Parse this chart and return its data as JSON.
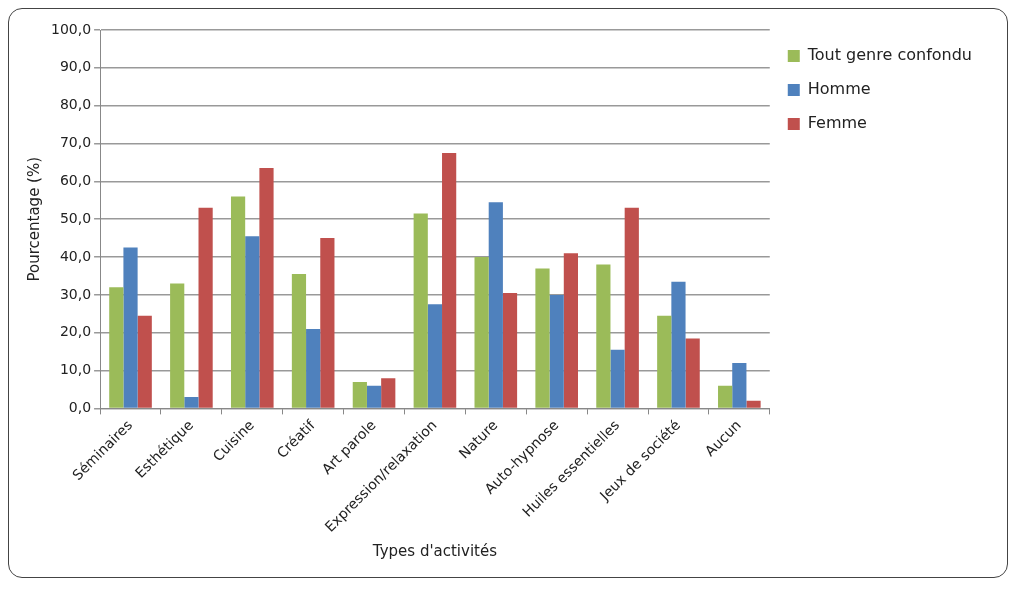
{
  "chart_data": {
    "type": "bar",
    "xlabel": "Types d'activités",
    "ylabel": "Pourcentage (%)",
    "categories": [
      "Séminaires",
      "Esthétique",
      "Cuisine",
      "Créatif",
      "Art parole",
      "Expression/relaxation",
      "Nature",
      "Auto-hypnose",
      "Huiles essentielles",
      "Jeux de société",
      "Aucun"
    ],
    "series": [
      {
        "name": "Tout genre confondu",
        "color": "#9bbb59",
        "values": [
          32,
          33,
          56,
          35.5,
          7,
          51.5,
          40,
          37,
          38,
          24.5,
          6
        ]
      },
      {
        "name": "Homme",
        "color": "#4f81bd",
        "values": [
          42.5,
          3,
          45.5,
          21,
          6,
          27.5,
          54.5,
          30,
          15.5,
          33.5,
          12
        ]
      },
      {
        "name": "Femme",
        "color": "#c0504d",
        "values": [
          24.5,
          53,
          63.5,
          45,
          8,
          67.5,
          30.5,
          41,
          53,
          18.5,
          2
        ]
      }
    ],
    "ylim": [
      0,
      100
    ],
    "yticks": [
      {
        "value": 0,
        "label": "0,0"
      },
      {
        "value": 10,
        "label": "10,0"
      },
      {
        "value": 20,
        "label": "20,0"
      },
      {
        "value": 30,
        "label": "30,0"
      },
      {
        "value": 40,
        "label": "40,0"
      },
      {
        "value": 50,
        "label": "50,0"
      },
      {
        "value": 60,
        "label": "60,0"
      },
      {
        "value": 70,
        "label": "70,0"
      },
      {
        "value": 80,
        "label": "80,0"
      },
      {
        "value": 90,
        "label": "90,0"
      },
      {
        "value": 100,
        "label": "100,0"
      }
    ],
    "grid": "y",
    "legend": "right"
  }
}
